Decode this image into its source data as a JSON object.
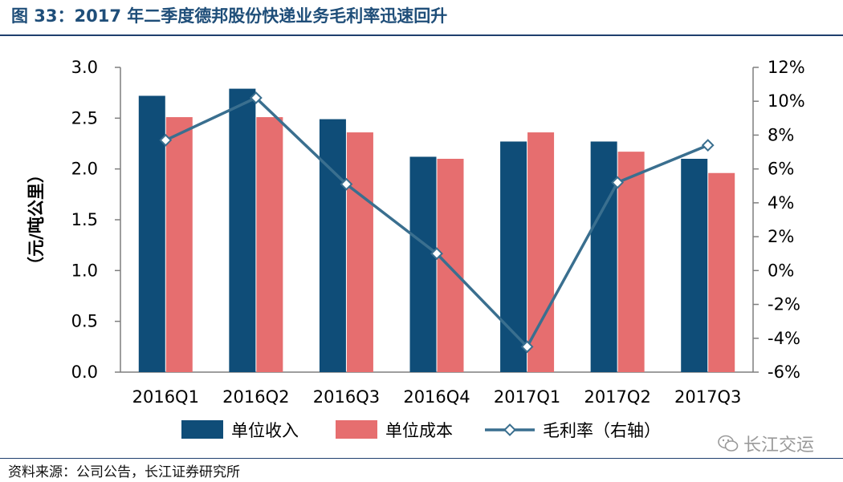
{
  "header": {
    "title": "图 33：2017 年二季度德邦股份快递业务毛利率迅速回升"
  },
  "footer": {
    "source": "资料来源：公司公告，长江证券研究所"
  },
  "watermark": {
    "text": "长江交运",
    "icon": "wechat-icon"
  },
  "colors": {
    "revenue": "#0f4d78",
    "cost": "#e66e6f",
    "margin": "#3a6f8f",
    "axis": "#7f7f7f",
    "title": "#1f4e79"
  },
  "chart_data": {
    "type": "bar",
    "categories": [
      "2016Q1",
      "2016Q2",
      "2016Q3",
      "2016Q4",
      "2017Q1",
      "2017Q2",
      "2017Q3"
    ],
    "series": [
      {
        "name": "单位收入",
        "type": "bar",
        "axis": "left",
        "values": [
          2.72,
          2.79,
          2.49,
          2.12,
          2.27,
          2.27,
          2.1
        ]
      },
      {
        "name": "单位成本",
        "type": "bar",
        "axis": "left",
        "values": [
          2.51,
          2.51,
          2.36,
          2.1,
          2.36,
          2.17,
          1.96
        ]
      },
      {
        "name": "毛利率（右轴）",
        "type": "line",
        "axis": "right",
        "marker": "diamond",
        "values": [
          7.7,
          10.2,
          5.1,
          1.0,
          -4.5,
          5.2,
          7.4
        ]
      }
    ],
    "ylabel": "（元/吨公里）",
    "ylim": [
      0,
      3.0
    ],
    "yticks": [
      "0.0",
      "0.5",
      "1.0",
      "1.5",
      "2.0",
      "2.5",
      "3.0"
    ],
    "y2lim": [
      -6,
      12
    ],
    "y2ticks": [
      "-6%",
      "-4%",
      "-2%",
      "0%",
      "2%",
      "4%",
      "6%",
      "8%",
      "10%",
      "12%"
    ],
    "grid": false,
    "legend_position": "bottom"
  }
}
